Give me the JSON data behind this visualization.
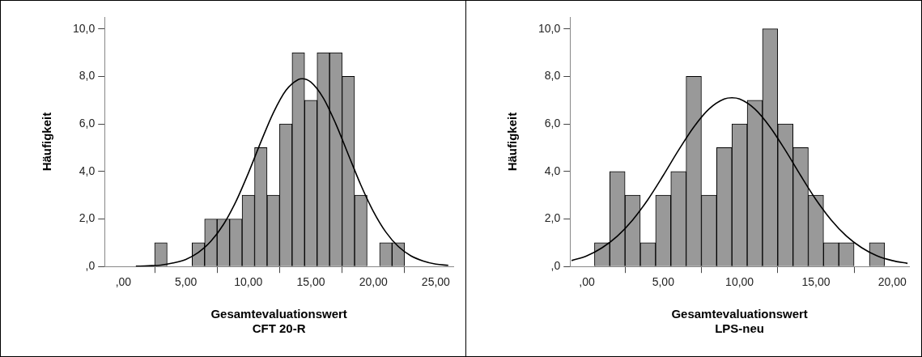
{
  "chart_data": [
    {
      "type": "histogram",
      "xlabel": "Gesamtevaluationswert\nCFT 20-R",
      "ylabel": "Häufigkeit",
      "color": "#999999",
      "grid": false,
      "legend": false,
      "marker": "none",
      "line_style": "solid",
      "bins": [
        2.5,
        3.5,
        4.5,
        5.5,
        6.5,
        7.5,
        8.5,
        9.5,
        10.5,
        11.5,
        12.5,
        13.5,
        14.5,
        15.5,
        16.5,
        17.5,
        18.5,
        19.5,
        20.5,
        21.5,
        22.5
      ],
      "values": [
        1,
        0,
        0,
        1,
        2,
        2,
        2,
        3,
        5,
        3,
        6,
        9,
        7,
        9,
        9,
        8,
        3,
        0,
        1,
        1
      ],
      "series": [
        {
          "type": "line",
          "color": "#000000",
          "x": [
            1,
            2,
            3,
            4,
            5,
            6,
            7,
            8,
            9,
            10,
            11,
            12,
            13,
            14,
            14.3,
            15,
            16,
            17,
            18,
            19,
            20,
            21,
            22,
            23,
            24,
            25,
            26
          ],
          "values": [
            0.01,
            0.03,
            0.06,
            0.15,
            0.3,
            0.59,
            1.06,
            1.76,
            2.73,
            3.93,
            5.24,
            6.47,
            7.41,
            7.87,
            7.9,
            7.76,
            7.09,
            6.0,
            4.71,
            3.43,
            2.32,
            1.45,
            0.84,
            0.45,
            0.23,
            0.1,
            0.05
          ]
        }
      ],
      "xlim": [
        -1.5,
        26.4
      ],
      "xticks": [
        {
          "value": 0,
          "label": ",00"
        },
        {
          "value": 5,
          "label": "5,00"
        },
        {
          "value": 10,
          "label": "10,00"
        },
        {
          "value": 15,
          "label": "15,00"
        },
        {
          "value": 20,
          "label": "20,00"
        },
        {
          "value": 25,
          "label": "25,00"
        }
      ],
      "ylim": [
        0,
        10.5
      ],
      "yticks": [
        {
          "value": 0,
          "label": ",0"
        },
        {
          "value": 2,
          "label": "2,0"
        },
        {
          "value": 4,
          "label": "4,0"
        },
        {
          "value": 6,
          "label": "6,0"
        },
        {
          "value": 8,
          "label": "8,0"
        },
        {
          "value": 10,
          "label": "10,0"
        }
      ]
    },
    {
      "type": "histogram",
      "xlabel": "Gesamtevaluationswert\nLPS-neu",
      "ylabel": "Häufigkeit",
      "color": "#999999",
      "grid": false,
      "legend": false,
      "marker": "none",
      "line_style": "solid",
      "bins": [
        0.5,
        1.5,
        2.5,
        3.5,
        4.5,
        5.5,
        6.5,
        7.5,
        8.5,
        9.5,
        10.5,
        11.5,
        12.5,
        13.5,
        14.5,
        15.5,
        16.5,
        17.5,
        18.5,
        19.5
      ],
      "values": [
        1,
        4,
        3,
        1,
        3,
        4,
        8,
        3,
        5,
        6,
        7,
        10,
        6,
        5,
        3,
        1,
        1,
        0,
        1
      ],
      "series": [
        {
          "type": "line",
          "color": "#000000",
          "x": [
            -1,
            0,
            1,
            2,
            3,
            4,
            5,
            6,
            7,
            8,
            9,
            9.5,
            10,
            11,
            12,
            13,
            14,
            15,
            16,
            17,
            18,
            19,
            20,
            21
          ],
          "values": [
            0.25,
            0.45,
            0.79,
            1.28,
            1.96,
            2.82,
            3.83,
            4.89,
            5.87,
            6.63,
            7.05,
            7.1,
            7.05,
            6.63,
            5.87,
            4.89,
            3.83,
            2.82,
            1.96,
            1.28,
            0.79,
            0.45,
            0.25,
            0.13
          ]
        }
      ],
      "xlim": [
        -1.1,
        21.1
      ],
      "xticks": [
        {
          "value": 0,
          "label": ",00"
        },
        {
          "value": 5,
          "label": "5,00"
        },
        {
          "value": 10,
          "label": "10,00"
        },
        {
          "value": 15,
          "label": "15,00"
        },
        {
          "value": 20,
          "label": "20,00"
        }
      ],
      "ylim": [
        0,
        10.5
      ],
      "yticks": [
        {
          "value": 0,
          "label": ",0"
        },
        {
          "value": 2,
          "label": "2,0"
        },
        {
          "value": 4,
          "label": "4,0"
        },
        {
          "value": 6,
          "label": "6,0"
        },
        {
          "value": 8,
          "label": "8,0"
        },
        {
          "value": 10,
          "label": "10,0"
        }
      ]
    }
  ]
}
